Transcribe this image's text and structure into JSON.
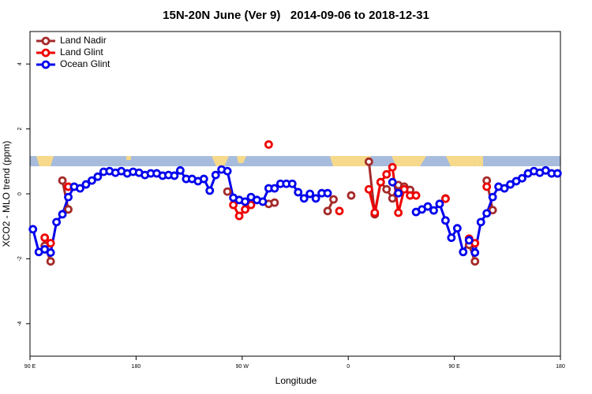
{
  "chart_data": {
    "type": "line",
    "title": "15N-20N June (Ver 9)   2014-09-06 to 2018-12-31",
    "xlabel": "Longitude",
    "ylabel": "XCO2 - MLO trend (ppm)",
    "x": [
      92.5,
      97.5,
      102.5,
      107.5,
      112.5,
      117.5,
      122.5,
      127.5,
      132.5,
      137.5,
      142.5,
      147.5,
      152.5,
      157.5,
      162.5,
      167.5,
      172.5,
      177.5,
      182.5,
      187.5,
      192.5,
      197.5,
      202.5,
      207.5,
      212.5,
      217.5,
      222.5,
      227.5,
      232.5,
      237.5,
      242.5,
      247.5,
      252.5,
      257.5,
      262.5,
      267.5,
      272.5,
      277.5,
      282.5,
      287.5,
      292.5,
      297.5,
      302.5,
      307.5,
      312.5,
      317.5,
      322.5,
      327.5,
      332.5,
      337.5,
      342.5,
      347.5,
      352.5,
      357.5,
      362.5,
      367.5,
      372.5,
      377.5,
      382.5,
      387.5,
      392.5,
      397.5,
      402.5,
      407.5,
      412.5,
      417.5,
      422.5,
      427.5,
      432.5,
      437.5,
      442.5,
      447.5,
      452.5,
      457.5,
      462.5,
      467.5,
      472.5,
      477.5,
      482.5,
      487.5,
      492.5,
      497.5,
      502.5,
      507.5,
      512.5,
      517.5,
      522.5,
      527.5,
      532.5,
      537.5
    ],
    "series": [
      {
        "name": "Land Nadir",
        "color": "#a52a2a",
        "values": [
          null,
          null,
          -1.6,
          -2.08,
          null,
          0.41,
          -0.48,
          null,
          null,
          null,
          null,
          null,
          null,
          null,
          null,
          null,
          null,
          null,
          null,
          null,
          null,
          null,
          null,
          null,
          null,
          null,
          null,
          null,
          null,
          null,
          null,
          null,
          null,
          0.07,
          null,
          null,
          null,
          null,
          null,
          null,
          -0.31,
          -0.27,
          null,
          null,
          null,
          null,
          null,
          null,
          null,
          null,
          -0.53,
          -0.17,
          null,
          null,
          -0.05,
          null,
          null,
          0.99,
          -0.63,
          0.36,
          0.14,
          -0.14,
          0.27,
          0.22,
          0.12,
          null,
          null,
          null,
          null,
          -0.31,
          -0.14,
          null,
          null,
          null,
          -1.57,
          -2.08,
          null,
          0.41,
          -0.5,
          null,
          null,
          null,
          null,
          null,
          null,
          null,
          null,
          null,
          null,
          null
        ]
      },
      {
        "name": "Land Glint",
        "color": "#ee0000",
        "values": [
          null,
          null,
          -1.35,
          -1.52,
          null,
          null,
          0.22,
          null,
          null,
          null,
          null,
          null,
          null,
          null,
          null,
          null,
          null,
          null,
          null,
          null,
          null,
          null,
          null,
          null,
          null,
          null,
          null,
          null,
          null,
          null,
          null,
          null,
          null,
          null,
          -0.34,
          -0.68,
          -0.48,
          -0.34,
          null,
          null,
          1.52,
          null,
          null,
          null,
          null,
          null,
          null,
          null,
          null,
          null,
          null,
          null,
          -0.53,
          null,
          null,
          null,
          null,
          0.14,
          -0.58,
          0.36,
          0.6,
          0.82,
          -0.58,
          0.14,
          -0.05,
          -0.05,
          null,
          null,
          null,
          null,
          -0.15,
          null,
          null,
          null,
          -1.38,
          -1.52,
          null,
          0.22,
          null,
          null,
          null,
          null,
          null,
          null,
          null,
          null,
          null,
          null,
          null,
          null
        ]
      },
      {
        "name": "Ocean Glint",
        "color": "#0000ee",
        "values": [
          -1.09,
          -1.79,
          -1.71,
          -1.81,
          -0.87,
          -0.63,
          -0.1,
          0.22,
          0.17,
          0.29,
          0.41,
          0.53,
          0.68,
          0.7,
          0.65,
          0.7,
          0.63,
          0.68,
          0.65,
          0.58,
          0.63,
          0.63,
          0.56,
          0.58,
          0.56,
          0.72,
          0.46,
          0.46,
          0.39,
          0.46,
          0.1,
          0.58,
          0.75,
          0.7,
          -0.12,
          -0.19,
          -0.24,
          -0.1,
          -0.19,
          -0.24,
          0.17,
          0.17,
          0.31,
          0.31,
          0.31,
          0.05,
          -0.14,
          0.0,
          -0.14,
          0.02,
          0.02,
          null,
          null,
          null,
          null,
          null,
          null,
          null,
          null,
          null,
          null,
          0.36,
          0.02,
          null,
          null,
          -0.56,
          -0.48,
          -0.39,
          -0.51,
          -0.31,
          -0.82,
          -1.35,
          -1.06,
          -1.79,
          -1.43,
          -1.81,
          -0.87,
          -0.6,
          -0.1,
          0.22,
          0.17,
          0.29,
          0.39,
          0.48,
          0.63,
          0.7,
          0.65,
          0.72,
          0.63,
          0.63
        ]
      }
    ],
    "xlim": [
      90,
      540
    ],
    "xticks": [
      {
        "value": 90,
        "label": "90 E"
      },
      180,
      {
        "value": 270,
        "label": "90 W"
      },
      {
        "value": 360,
        "label": "0"
      },
      {
        "value": 450,
        "label": "90 E"
      },
      {
        "value": 540,
        "label": "180"
      }
    ],
    "ylim": [
      -5,
      5
    ],
    "yticks": [
      -4,
      -2,
      0,
      2,
      4
    ],
    "legend": "top-left"
  }
}
